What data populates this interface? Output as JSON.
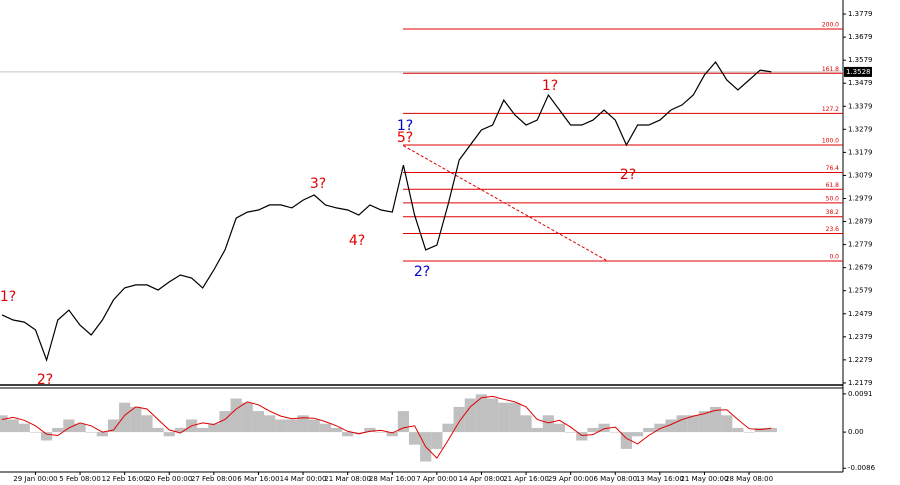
{
  "chart_data": [
    {
      "type": "line",
      "categories": [
        null,
        null,
        null,
        "29 Jan 00:00",
        null,
        null,
        null,
        "5 Feb 08:00",
        null,
        null,
        null,
        "12 Feb 16:00",
        null,
        null,
        null,
        "20 Feb 00:00",
        null,
        null,
        null,
        "27 Feb 08:00",
        null,
        null,
        null,
        "6 Mar 16:00",
        null,
        null,
        null,
        "14 Mar 00:00",
        null,
        null,
        null,
        "21 Mar 08:00",
        null,
        null,
        null,
        "28 Mar 16:00",
        null,
        null,
        null,
        "7 Apr 00:00",
        null,
        null,
        null,
        "14 Apr 08:00",
        null,
        null,
        null,
        "21 Apr 16:00",
        null,
        null,
        null,
        "29 Apr 00:00",
        null,
        null,
        null,
        "6 May 08:00",
        null,
        null,
        null,
        "13 May 16:00",
        null,
        null,
        null,
        "21 May 00:00",
        null,
        null,
        null,
        "28 May 08:00",
        null,
        null
      ],
      "values": [
        1.2474,
        1.2452,
        1.2443,
        1.2409,
        1.2278,
        1.2452,
        1.2495,
        1.243,
        1.2387,
        1.2452,
        1.2539,
        1.2591,
        1.2604,
        1.2604,
        1.2582,
        1.2617,
        1.2647,
        1.2634,
        1.2591,
        1.2669,
        1.2756,
        1.2894,
        1.292,
        1.2929,
        1.2951,
        1.2951,
        1.2938,
        1.2972,
        1.2994,
        1.2951,
        1.2938,
        1.2929,
        1.2907,
        1.2951,
        1.2929,
        1.292,
        1.3124,
        1.2907,
        1.2756,
        1.2777,
        1.2951,
        1.3146,
        1.3211,
        1.3276,
        1.3298,
        1.3406,
        1.3341,
        1.3298,
        1.3319,
        1.3428,
        1.3363,
        1.3298,
        1.3298,
        1.3319,
        1.3363,
        1.3319,
        1.3211,
        1.3298,
        1.3298,
        1.3319,
        1.3363,
        1.3385,
        1.3428,
        1.3515,
        1.3571,
        1.3493,
        1.345,
        1.3493,
        1.3536,
        1.3528
      ],
      "color": "#000000",
      "ylim": [
        1.217,
        1.384
      ],
      "yticks": [
        1.3779,
        1.3679,
        1.3579,
        1.3479,
        1.3379,
        1.3279,
        1.3179,
        1.3079,
        1.2979,
        1.2879,
        1.2779,
        1.2679,
        1.2579,
        1.2479,
        1.2379,
        1.2279,
        1.2179
      ],
      "last_price": 1.3528,
      "fib_color": "#e00000",
      "fib_levels": [
        {
          "name": "200.0",
          "value": 1.3714
        },
        {
          "name": "161.8",
          "value": 1.3522
        },
        {
          "name": "127.2",
          "value": 1.3348
        },
        {
          "name": "100.0",
          "value": 1.3211
        },
        {
          "name": "76.4",
          "value": 1.3092
        },
        {
          "name": "61.8",
          "value": 1.3019
        },
        {
          "name": "50.0",
          "value": 1.296
        },
        {
          "name": "38.2",
          "value": 1.29
        },
        {
          "name": "23.6",
          "value": 1.2827
        },
        {
          "name": "0.0",
          "value": 1.2708
        }
      ],
      "trendline": [
        1.3208,
        1.2708
      ],
      "annotations": [
        {
          "text": "1?",
          "color": "#e00000"
        },
        {
          "text": "2?",
          "color": "#e00000"
        },
        {
          "text": "3?",
          "color": "#e00000"
        },
        {
          "text": "4?",
          "color": "#e00000"
        },
        {
          "text": "5?",
          "color": "#e00000"
        },
        {
          "text": "1?",
          "color": "#0000cc"
        },
        {
          "text": "2?",
          "color": "#0000cc"
        },
        {
          "text": "1?",
          "color": "#e00000"
        },
        {
          "text": "2?",
          "color": "#e00000"
        }
      ]
    },
    {
      "type": "bar",
      "values": [
        0.004,
        0.003,
        0.002,
        0,
        -0.002,
        0.001,
        0.003,
        0.002,
        0,
        -0.001,
        0.003,
        0.007,
        0.006,
        0.004,
        0.001,
        -0.001,
        0.001,
        0.003,
        0.001,
        0.002,
        0.005,
        0.008,
        0.007,
        0.005,
        0.004,
        0.003,
        0.003,
        0.004,
        0.003,
        0.002,
        0.001,
        -0.001,
        0,
        0.001,
        0,
        -0.001,
        0.005,
        -0.003,
        -0.007,
        -0.004,
        0.002,
        0.006,
        0.008,
        0.009,
        0.008,
        0.007,
        0.007,
        0.004,
        0.001,
        0.004,
        0.002,
        0,
        -0.002,
        0.001,
        0.002,
        0,
        -0.004,
        -0.001,
        0.001,
        0.002,
        0.003,
        0.004,
        0.004,
        0.005,
        0.006,
        0.004,
        0.001,
        0,
        0.001,
        0.001
      ],
      "signal": [
        0.003,
        0.0035,
        0.0028,
        0.0015,
        -0.0005,
        -0.0008,
        0.001,
        0.0022,
        0.0015,
        0,
        0.0005,
        0.004,
        0.006,
        0.0055,
        0.003,
        0.0005,
        -0.0002,
        0.0015,
        0.0022,
        0.0018,
        0.003,
        0.0055,
        0.0072,
        0.0065,
        0.005,
        0.0038,
        0.0032,
        0.0034,
        0.0033,
        0.0025,
        0.0015,
        0.0002,
        -0.0004,
        0.0002,
        0.0004,
        -0.0002,
        0.001,
        0.0015,
        -0.0035,
        -0.0062,
        -0.002,
        0.0025,
        0.006,
        0.0082,
        0.0085,
        0.0078,
        0.0072,
        0.006,
        0.003,
        0.0022,
        0.0028,
        0.0012,
        -0.0008,
        -0.0006,
        0.0008,
        0.0012,
        -0.0015,
        -0.0028,
        -0.0008,
        0.0008,
        0.0018,
        0.003,
        0.0038,
        0.0044,
        0.0052,
        0.0053,
        0.003,
        0.0008,
        0.0006,
        0.0009
      ],
      "color": "#c0c0c0",
      "signal_color": "#e00000",
      "ylim": [
        -0.0095,
        0.0105
      ],
      "yticks": [
        0.0091,
        {
          "value": 0,
          "label": "0.00"
        },
        -0.0086
      ]
    }
  ]
}
